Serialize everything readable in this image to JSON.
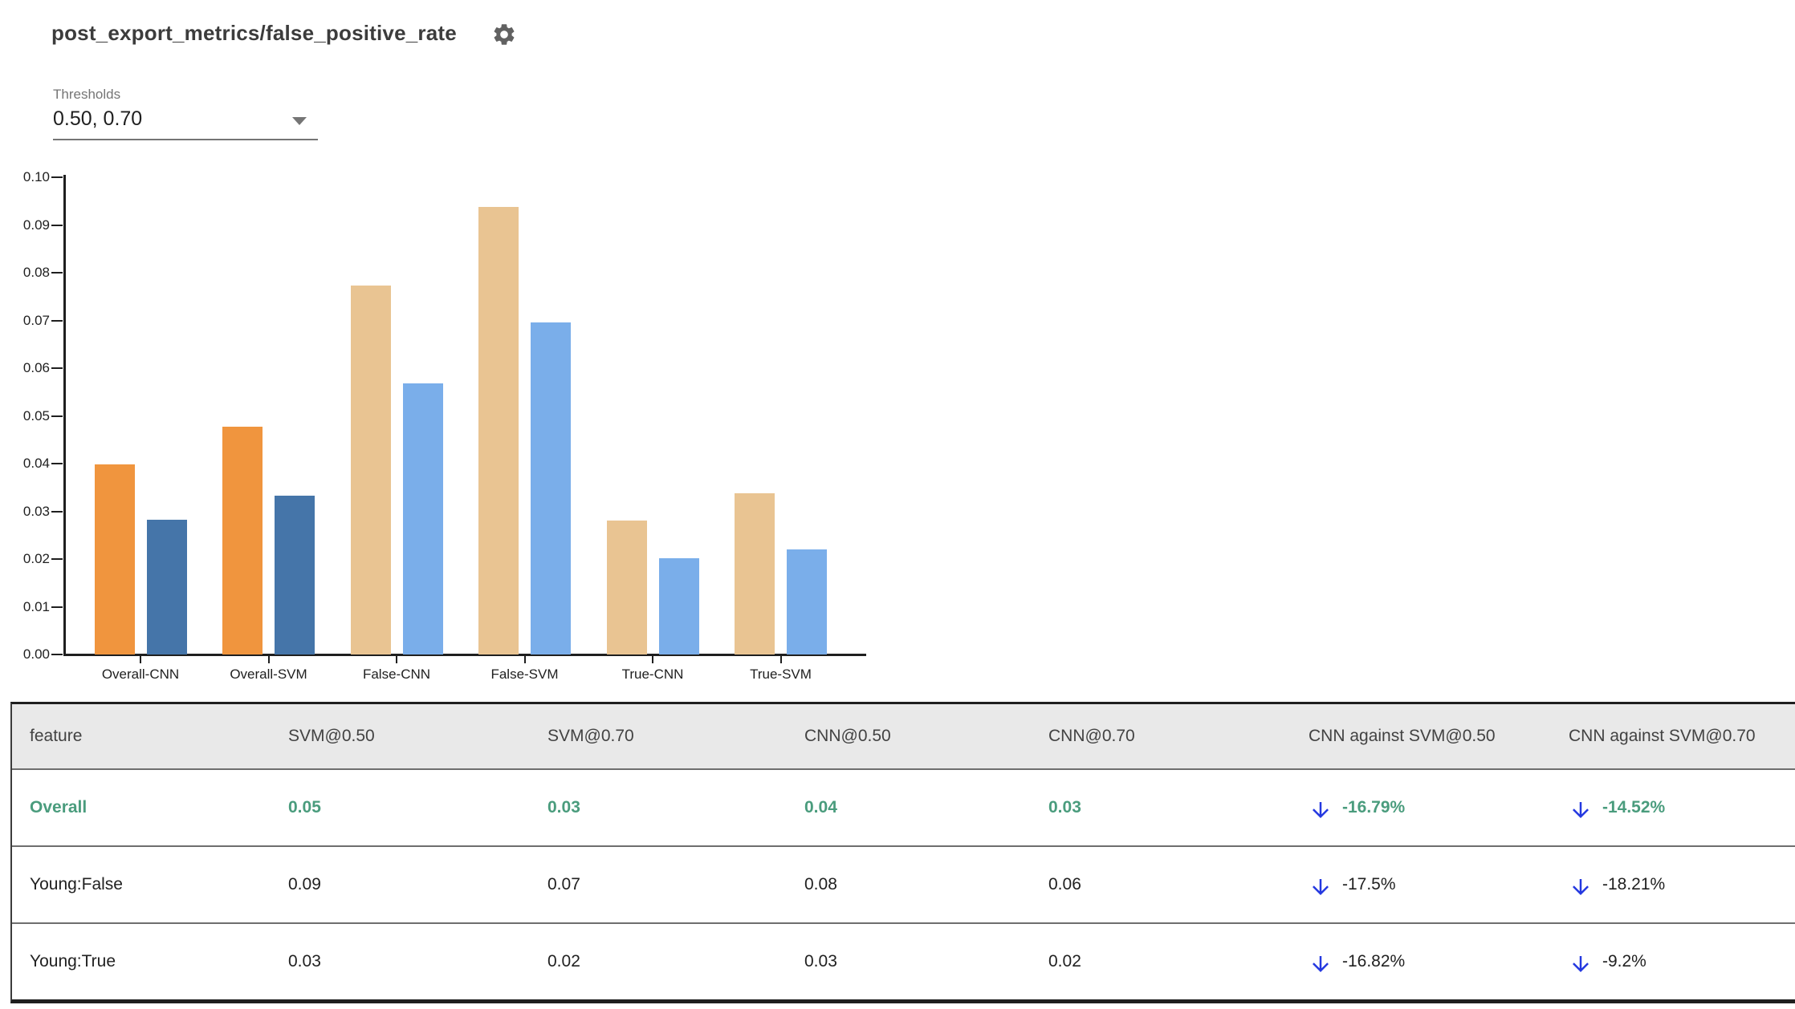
{
  "header": {
    "title": "post_export_metrics/false_positive_rate",
    "gear_icon": "settings-gear"
  },
  "thresholds": {
    "label": "Thresholds",
    "value": "0.50, 0.70"
  },
  "chart_data": {
    "type": "bar",
    "title": "",
    "categories": [
      "Overall-CNN",
      "Overall-SVM",
      "False-CNN",
      "False-SVM",
      "True-CNN",
      "True-SVM"
    ],
    "series": [
      {
        "name": "threshold 0.50",
        "values": [
          0.0398,
          0.0477,
          0.0773,
          0.0938,
          0.028,
          0.0337
        ]
      },
      {
        "name": "threshold 0.70",
        "values": [
          0.0283,
          0.0332,
          0.0568,
          0.0695,
          0.0201,
          0.0221
        ]
      }
    ],
    "emphasis": [
      true,
      true,
      false,
      false,
      false,
      false
    ],
    "colors": {
      "emphasis_50": "#f0953e",
      "emphasis_70": "#4575a9",
      "slice_50": "#e9c492",
      "slice_70": "#7aaeea"
    },
    "ylim": [
      0,
      0.1
    ],
    "ytick_labels": [
      "0.00",
      "0.01",
      "0.02",
      "0.03",
      "0.04",
      "0.05",
      "0.06",
      "0.07",
      "0.08",
      "0.09",
      "0.10"
    ],
    "grid": false,
    "legend_position": "none"
  },
  "table": {
    "columns": [
      "feature",
      "SVM@0.50",
      "SVM@0.70",
      "CNN@0.50",
      "CNN@0.70",
      "CNN against SVM@0.50",
      "CNN against SVM@0.70"
    ],
    "rows": [
      {
        "feature": "Overall",
        "values": [
          "0.05",
          "0.03",
          "0.04",
          "0.03"
        ],
        "comparisons": [
          {
            "direction": "down",
            "text": "-16.79%"
          },
          {
            "direction": "down",
            "text": "-14.52%"
          }
        ]
      },
      {
        "feature": "Young:False",
        "values": [
          "0.09",
          "0.07",
          "0.08",
          "0.06"
        ],
        "comparisons": [
          {
            "direction": "down",
            "text": "-17.5%"
          },
          {
            "direction": "down",
            "text": "-18.21%"
          }
        ]
      },
      {
        "feature": "Young:True",
        "values": [
          "0.03",
          "0.02",
          "0.03",
          "0.02"
        ],
        "comparisons": [
          {
            "direction": "down",
            "text": "-16.82%"
          },
          {
            "direction": "down",
            "text": "-9.2%"
          }
        ]
      }
    ],
    "colors": {
      "highlight_green": "#4a9c7d",
      "arrow_blue": "#2438e0",
      "header_bg": "#e9e9e9"
    }
  }
}
